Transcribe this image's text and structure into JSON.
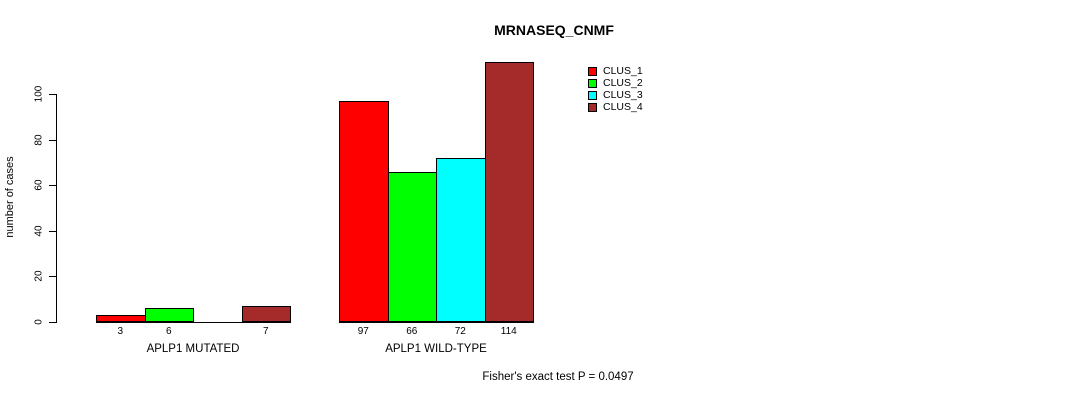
{
  "title": "MRNASEQ_CNMF",
  "footer": "Fisher's exact test P = 0.0497",
  "y_axis": {
    "label": "number of cases",
    "tick_labels": [
      "0",
      "20",
      "40",
      "60",
      "80",
      "100"
    ]
  },
  "legend": {
    "items": [
      {
        "label": "CLUS_1",
        "color": "#FF0000"
      },
      {
        "label": "CLUS_2",
        "color": "#00FF00"
      },
      {
        "label": "CLUS_3",
        "color": "#00FFFF"
      },
      {
        "label": "CLUS_4",
        "color": "#A52A2A"
      }
    ]
  },
  "chart_data": {
    "type": "bar",
    "title": "MRNASEQ_CNMF",
    "categories": [
      "APLP1 MUTATED",
      "APLP1 WILD-TYPE"
    ],
    "series": [
      {
        "name": "CLUS_1",
        "color": "#FF0000",
        "values": [
          3,
          97
        ]
      },
      {
        "name": "CLUS_2",
        "color": "#00FF00",
        "values": [
          6,
          66
        ]
      },
      {
        "name": "CLUS_3",
        "color": "#00FFFF",
        "values": [
          0,
          72
        ]
      },
      {
        "name": "CLUS_4",
        "color": "#A52A2A",
        "values": [
          7,
          114
        ]
      }
    ],
    "bar_value_labels": [
      [
        "3",
        "6",
        "",
        "7"
      ],
      [
        "97",
        "66",
        "72",
        "114"
      ]
    ],
    "xlabel": "",
    "ylabel": "number of cases",
    "yticks": [
      0,
      20,
      40,
      60,
      80,
      100
    ],
    "ylim": [
      0,
      114
    ],
    "grid": false,
    "legend_position": "top-right",
    "annotation": "Fisher's exact test P = 0.0497"
  }
}
